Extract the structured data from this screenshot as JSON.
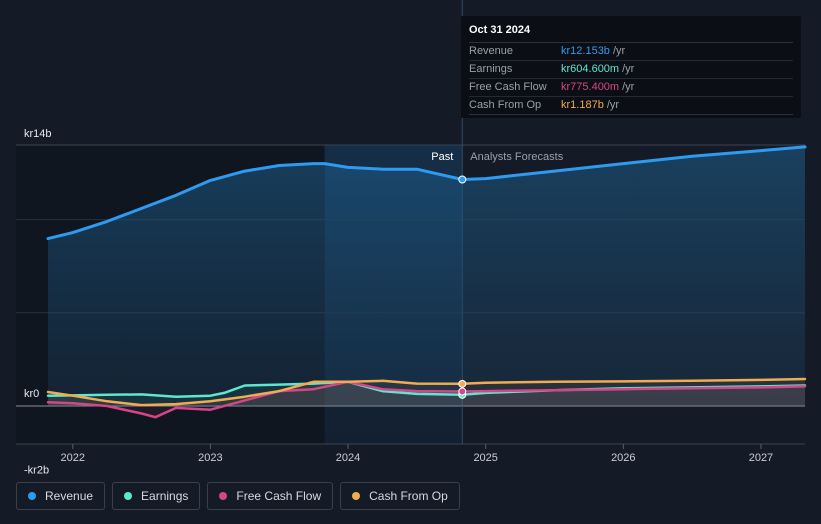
{
  "tooltip": {
    "date": "Oct 31 2024",
    "rows": [
      {
        "label": "Revenue",
        "value": "kr12.153b",
        "unit": "/yr",
        "color": "#2e9bf0"
      },
      {
        "label": "Earnings",
        "value": "kr604.600m",
        "unit": "/yr",
        "color": "#5ee6d0"
      },
      {
        "label": "Free Cash Flow",
        "value": "kr775.400m",
        "unit": "/yr",
        "color": "#d4468a"
      },
      {
        "label": "Cash From Op",
        "value": "kr1.187b",
        "unit": "/yr",
        "color": "#f0ac52"
      }
    ]
  },
  "chart_data": {
    "type": "line",
    "title": "",
    "y_tick_labels": [
      "kr14b",
      "kr0",
      "-kr2b"
    ],
    "ylim": [
      -2,
      14
    ],
    "x_tick_labels": [
      "2022",
      "2023",
      "2024",
      "2025",
      "2026",
      "2027"
    ],
    "xlim": [
      2021.6,
      2027.32
    ],
    "past_label": "Past",
    "forecast_label": "Analysts Forecasts",
    "divider_x": 2024.83,
    "shade_start_x": 2023.83,
    "series": [
      {
        "name": "Revenue",
        "color": "#2e9bf0",
        "x": [
          2021.82,
          2022.0,
          2022.25,
          2022.5,
          2022.75,
          2023.0,
          2023.25,
          2023.5,
          2023.75,
          2023.83,
          2024.0,
          2024.25,
          2024.5,
          2024.83,
          2025.0,
          2025.5,
          2026.0,
          2026.5,
          2027.0,
          2027.32
        ],
        "values": [
          8.98,
          9.3,
          9.9,
          10.6,
          11.3,
          12.1,
          12.6,
          12.9,
          13.0,
          13.0,
          12.8,
          12.7,
          12.7,
          12.15,
          12.2,
          12.6,
          13.0,
          13.4,
          13.7,
          13.9
        ]
      },
      {
        "name": "Earnings",
        "color": "#5ee6d0",
        "x": [
          2021.82,
          2022.0,
          2022.25,
          2022.5,
          2022.75,
          2023.0,
          2023.1,
          2023.25,
          2023.5,
          2023.75,
          2024.0,
          2024.25,
          2024.5,
          2024.83,
          2025.0,
          2025.5,
          2026.0,
          2026.5,
          2027.0,
          2027.32
        ],
        "values": [
          0.55,
          0.57,
          0.6,
          0.62,
          0.5,
          0.55,
          0.7,
          1.1,
          1.15,
          1.2,
          1.3,
          0.8,
          0.65,
          0.6,
          0.7,
          0.85,
          0.95,
          1.0,
          1.05,
          1.1
        ]
      },
      {
        "name": "Free Cash Flow",
        "color": "#d4468a",
        "x": [
          2021.82,
          2022.0,
          2022.25,
          2022.5,
          2022.6,
          2022.75,
          2023.0,
          2023.25,
          2023.5,
          2023.75,
          2024.0,
          2024.25,
          2024.5,
          2024.83,
          2025.0,
          2025.5,
          2026.0,
          2026.5,
          2027.0,
          2027.32
        ],
        "values": [
          0.2,
          0.15,
          0.0,
          -0.4,
          -0.6,
          -0.1,
          -0.2,
          0.3,
          0.8,
          0.9,
          1.3,
          0.9,
          0.8,
          0.78,
          0.8,
          0.85,
          0.9,
          0.95,
          1.0,
          1.05
        ]
      },
      {
        "name": "Cash From Op",
        "color": "#f0ac52",
        "x": [
          2021.82,
          2022.0,
          2022.25,
          2022.5,
          2022.75,
          2023.0,
          2023.25,
          2023.5,
          2023.75,
          2024.0,
          2024.25,
          2024.5,
          2024.83,
          2025.0,
          2025.5,
          2026.0,
          2026.5,
          2027.0,
          2027.32
        ],
        "values": [
          0.75,
          0.55,
          0.25,
          0.05,
          0.1,
          0.25,
          0.5,
          0.8,
          1.3,
          1.3,
          1.35,
          1.2,
          1.19,
          1.25,
          1.3,
          1.32,
          1.35,
          1.4,
          1.45
        ]
      }
    ]
  }
}
